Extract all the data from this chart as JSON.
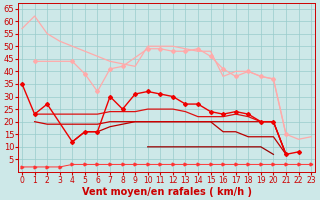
{
  "xlabel": "Vent moyen/en rafales ( km/h )",
  "bg_color": "#cde8e8",
  "grid_color": "#99cccc",
  "x_values": [
    0,
    1,
    2,
    3,
    4,
    5,
    6,
    7,
    8,
    9,
    10,
    11,
    12,
    13,
    14,
    15,
    16,
    17,
    18,
    19,
    20,
    21,
    22,
    23
  ],
  "lines": [
    {
      "y": [
        57,
        62,
        55,
        52,
        50,
        48,
        46,
        44,
        43,
        42,
        50,
        50,
        50,
        49,
        48,
        48,
        38,
        40,
        40,
        38,
        37,
        15,
        13,
        14
      ],
      "color": "#ffaaaa",
      "lw": 0.9,
      "marker": null,
      "zorder": 2
    },
    {
      "y": [
        null,
        44,
        null,
        null,
        44,
        39,
        32,
        41,
        42,
        null,
        49,
        49,
        48,
        48,
        49,
        46,
        41,
        38,
        40,
        38,
        37,
        15,
        null,
        null
      ],
      "color": "#ffaaaa",
      "lw": 0.9,
      "marker": "D",
      "markersize": 2,
      "zorder": 3
    },
    {
      "y": [
        null,
        null,
        27,
        null,
        null,
        null,
        null,
        null,
        null,
        null,
        null,
        null,
        null,
        null,
        null,
        null,
        null,
        null,
        null,
        null,
        null,
        null,
        null,
        null
      ],
      "color": "#ffbbbb",
      "lw": 0.9,
      "marker": null,
      "zorder": 2
    },
    {
      "y": [
        35,
        23,
        27,
        null,
        12,
        16,
        16,
        30,
        25,
        31,
        32,
        31,
        30,
        27,
        27,
        24,
        23,
        24,
        23,
        20,
        20,
        7,
        8,
        null
      ],
      "color": "#ee0000",
      "lw": 1.0,
      "marker": "D",
      "markersize": 2,
      "zorder": 5
    },
    {
      "y": [
        null,
        23,
        23,
        23,
        23,
        23,
        23,
        24,
        24,
        24,
        25,
        25,
        25,
        24,
        22,
        22,
        22,
        23,
        22,
        20,
        20,
        7,
        null,
        null
      ],
      "color": "#dd1111",
      "lw": 0.9,
      "marker": null,
      "zorder": 4
    },
    {
      "y": [
        null,
        20,
        19,
        null,
        null,
        null,
        19,
        20,
        20,
        20,
        20,
        20,
        20,
        20,
        20,
        20,
        20,
        20,
        20,
        20,
        20,
        7,
        null,
        null
      ],
      "color": "#cc0000",
      "lw": 0.9,
      "marker": null,
      "zorder": 4
    },
    {
      "y": [
        null,
        null,
        null,
        null,
        12,
        16,
        16,
        18,
        19,
        20,
        20,
        20,
        20,
        20,
        20,
        20,
        16,
        16,
        14,
        14,
        14,
        7,
        null,
        null
      ],
      "color": "#bb0000",
      "lw": 0.9,
      "marker": null,
      "zorder": 3
    },
    {
      "y": [
        null,
        null,
        null,
        null,
        null,
        null,
        null,
        null,
        null,
        null,
        10,
        10,
        10,
        10,
        10,
        10,
        10,
        10,
        10,
        10,
        7,
        null,
        null,
        null
      ],
      "color": "#990000",
      "lw": 0.9,
      "marker": null,
      "zorder": 3
    },
    {
      "y": [
        2,
        2,
        2,
        2,
        3,
        3,
        3,
        3,
        3,
        3,
        3,
        3,
        3,
        3,
        3,
        3,
        3,
        3,
        3,
        3,
        3,
        3,
        3,
        3
      ],
      "color": "#ff3333",
      "lw": 0.7,
      "marker": ">",
      "markersize": 2,
      "zorder": 6
    }
  ],
  "ylim": [
    0,
    67
  ],
  "xlim": [
    -0.3,
    23.3
  ],
  "yticks": [
    5,
    10,
    15,
    20,
    25,
    30,
    35,
    40,
    45,
    50,
    55,
    60,
    65
  ],
  "xticks": [
    0,
    1,
    2,
    3,
    4,
    5,
    6,
    7,
    8,
    9,
    10,
    11,
    12,
    13,
    14,
    15,
    16,
    17,
    18,
    19,
    20,
    21,
    22,
    23
  ],
  "tick_color": "#cc0000",
  "label_color": "#cc0000",
  "xlabel_fontsize": 7.0,
  "tick_fontsize_x": 5.5,
  "tick_fontsize_y": 6.0
}
